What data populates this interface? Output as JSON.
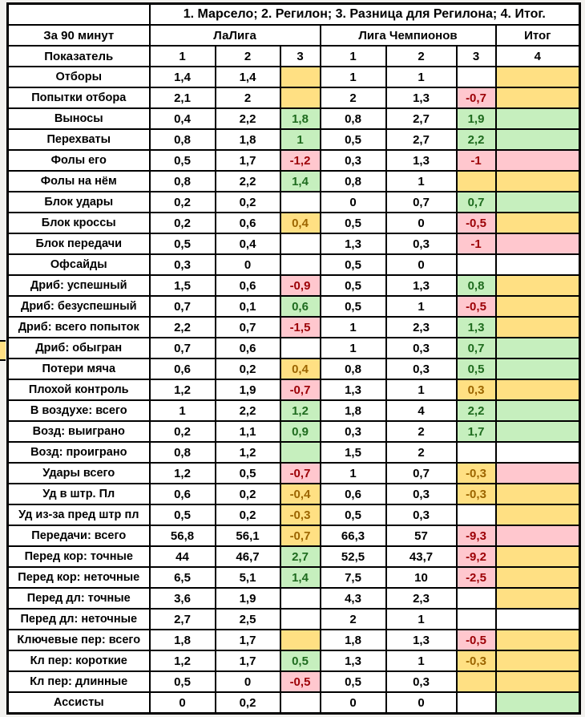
{
  "header": {
    "title": "1. Марсело; 2. Регилон; 3. Разница для Регилона; 4. Итог.",
    "per90": "За 90 минут",
    "laliga": "ЛаЛига",
    "ucl": "Лига Чемпионов",
    "total": "Итог",
    "indicator": "Показатель",
    "col_numbers": [
      "1",
      "2",
      "3",
      "1",
      "2",
      "3",
      "4"
    ]
  },
  "colors": {
    "w": "#FFFFFF",
    "y": "#FFE083",
    "g": "#C6EFBE",
    "p": "#FFC7CE"
  },
  "text_colors": {
    "w": "#000000",
    "y": "#9C6500",
    "g": "#1E6B1E",
    "p": "#9C0006"
  },
  "rows": [
    {
      "label": "Отборы",
      "cells": [
        {
          "v": "1,4",
          "c": "w"
        },
        {
          "v": "1,4",
          "c": "w"
        },
        {
          "v": "",
          "c": "y"
        },
        {
          "v": "1",
          "c": "w"
        },
        {
          "v": "1",
          "c": "w"
        },
        {
          "v": "",
          "c": "w"
        }
      ],
      "total": "y"
    },
    {
      "label": "Попытки отбора",
      "cells": [
        {
          "v": "2,1",
          "c": "w"
        },
        {
          "v": "2",
          "c": "w"
        },
        {
          "v": "",
          "c": "y"
        },
        {
          "v": "2",
          "c": "w"
        },
        {
          "v": "1,3",
          "c": "w"
        },
        {
          "v": "-0,7",
          "c": "p"
        }
      ],
      "total": "y"
    },
    {
      "label": "Выносы",
      "cells": [
        {
          "v": "0,4",
          "c": "w"
        },
        {
          "v": "2,2",
          "c": "w"
        },
        {
          "v": "1,8",
          "c": "g"
        },
        {
          "v": "0,8",
          "c": "w"
        },
        {
          "v": "2,7",
          "c": "w"
        },
        {
          "v": "1,9",
          "c": "g"
        }
      ],
      "total": "g"
    },
    {
      "label": "Перехваты",
      "cells": [
        {
          "v": "0,8",
          "c": "w"
        },
        {
          "v": "1,8",
          "c": "w"
        },
        {
          "v": "1",
          "c": "g"
        },
        {
          "v": "0,5",
          "c": "w"
        },
        {
          "v": "2,7",
          "c": "w"
        },
        {
          "v": "2,2",
          "c": "g"
        }
      ],
      "total": "g"
    },
    {
      "label": "Фолы его",
      "cells": [
        {
          "v": "0,5",
          "c": "w"
        },
        {
          "v": "1,7",
          "c": "w"
        },
        {
          "v": "-1,2",
          "c": "p"
        },
        {
          "v": "0,3",
          "c": "w"
        },
        {
          "v": "1,3",
          "c": "w"
        },
        {
          "v": "-1",
          "c": "p"
        }
      ],
      "total": "p"
    },
    {
      "label": "Фолы на нём",
      "cells": [
        {
          "v": "0,8",
          "c": "w"
        },
        {
          "v": "2,2",
          "c": "w"
        },
        {
          "v": "1,4",
          "c": "g"
        },
        {
          "v": "0,8",
          "c": "w"
        },
        {
          "v": "1",
          "c": "w"
        },
        {
          "v": "",
          "c": "y"
        }
      ],
      "total": "y"
    },
    {
      "label": "Блок удары",
      "cells": [
        {
          "v": "0,2",
          "c": "w"
        },
        {
          "v": "0,2",
          "c": "w"
        },
        {
          "v": "",
          "c": "w"
        },
        {
          "v": "0",
          "c": "w"
        },
        {
          "v": "0,7",
          "c": "w"
        },
        {
          "v": "0,7",
          "c": "g"
        }
      ],
      "total": "g"
    },
    {
      "label": "Блок кроссы",
      "cells": [
        {
          "v": "0,2",
          "c": "w"
        },
        {
          "v": "0,6",
          "c": "w"
        },
        {
          "v": "0,4",
          "c": "y"
        },
        {
          "v": "0,5",
          "c": "w"
        },
        {
          "v": "0",
          "c": "w"
        },
        {
          "v": "-0,5",
          "c": "p"
        }
      ],
      "total": "y"
    },
    {
      "label": "Блок передачи",
      "cells": [
        {
          "v": "0,5",
          "c": "w"
        },
        {
          "v": "0,4",
          "c": "w"
        },
        {
          "v": "",
          "c": "w"
        },
        {
          "v": "1,3",
          "c": "w"
        },
        {
          "v": "0,3",
          "c": "w"
        },
        {
          "v": "-1",
          "c": "p"
        }
      ],
      "total": "p"
    },
    {
      "label": "Офсайды",
      "cells": [
        {
          "v": "0,3",
          "c": "w"
        },
        {
          "v": "0",
          "c": "w"
        },
        {
          "v": "",
          "c": "w"
        },
        {
          "v": "0,5",
          "c": "w"
        },
        {
          "v": "0",
          "c": "w"
        },
        {
          "v": "",
          "c": "w"
        }
      ],
      "total": "w"
    },
    {
      "label": "Дриб: успешный",
      "cells": [
        {
          "v": "1,5",
          "c": "w"
        },
        {
          "v": "0,6",
          "c": "w"
        },
        {
          "v": "-0,9",
          "c": "p"
        },
        {
          "v": "0,5",
          "c": "w"
        },
        {
          "v": "1,3",
          "c": "w"
        },
        {
          "v": "0,8",
          "c": "g"
        }
      ],
      "total": "y"
    },
    {
      "label": "Дриб: безуспешный",
      "cells": [
        {
          "v": "0,7",
          "c": "w"
        },
        {
          "v": "0,1",
          "c": "w"
        },
        {
          "v": "0,6",
          "c": "g"
        },
        {
          "v": "0,5",
          "c": "w"
        },
        {
          "v": "1",
          "c": "w"
        },
        {
          "v": "-0,5",
          "c": "p"
        }
      ],
      "total": "y"
    },
    {
      "label": "Дриб: всего попыток",
      "cells": [
        {
          "v": "2,2",
          "c": "w"
        },
        {
          "v": "0,7",
          "c": "w"
        },
        {
          "v": "-1,5",
          "c": "p"
        },
        {
          "v": "1",
          "c": "w"
        },
        {
          "v": "2,3",
          "c": "w"
        },
        {
          "v": "1,3",
          "c": "g"
        }
      ],
      "total": "y"
    },
    {
      "label": "Дриб: обыгран",
      "cells": [
        {
          "v": "0,7",
          "c": "w"
        },
        {
          "v": "0,6",
          "c": "w"
        },
        {
          "v": "",
          "c": "w"
        },
        {
          "v": "1",
          "c": "w"
        },
        {
          "v": "0,3",
          "c": "w"
        },
        {
          "v": "0,7",
          "c": "g"
        }
      ],
      "total": "g"
    },
    {
      "label": "Потери мяча",
      "cells": [
        {
          "v": "0,6",
          "c": "w"
        },
        {
          "v": "0,2",
          "c": "w"
        },
        {
          "v": "0,4",
          "c": "y"
        },
        {
          "v": "0,8",
          "c": "w"
        },
        {
          "v": "0,3",
          "c": "w"
        },
        {
          "v": "0,5",
          "c": "g"
        }
      ],
      "total": "g"
    },
    {
      "label": "Плохой контроль",
      "cells": [
        {
          "v": "1,2",
          "c": "w"
        },
        {
          "v": "1,9",
          "c": "w"
        },
        {
          "v": "-0,7",
          "c": "p"
        },
        {
          "v": "1,3",
          "c": "w"
        },
        {
          "v": "1",
          "c": "w"
        },
        {
          "v": "0,3",
          "c": "y"
        }
      ],
      "total": "y"
    },
    {
      "label": "В воздухе: всего",
      "cells": [
        {
          "v": "1",
          "c": "w"
        },
        {
          "v": "2,2",
          "c": "w"
        },
        {
          "v": "1,2",
          "c": "g"
        },
        {
          "v": "1,8",
          "c": "w"
        },
        {
          "v": "4",
          "c": "w"
        },
        {
          "v": "2,2",
          "c": "g"
        }
      ],
      "total": "g"
    },
    {
      "label": "Возд: выиграно",
      "cells": [
        {
          "v": "0,2",
          "c": "w"
        },
        {
          "v": "1,1",
          "c": "w"
        },
        {
          "v": "0,9",
          "c": "g"
        },
        {
          "v": "0,3",
          "c": "w"
        },
        {
          "v": "2",
          "c": "w"
        },
        {
          "v": "1,7",
          "c": "g"
        }
      ],
      "total": "g"
    },
    {
      "label": "Возд: проиграно",
      "cells": [
        {
          "v": "0,8",
          "c": "w"
        },
        {
          "v": "1,2",
          "c": "w"
        },
        {
          "v": "",
          "c": "g"
        },
        {
          "v": "1,5",
          "c": "w"
        },
        {
          "v": "2",
          "c": "w"
        },
        {
          "v": "",
          "c": "w"
        }
      ],
      "total": "w"
    },
    {
      "label": "Удары всего",
      "cells": [
        {
          "v": "1,2",
          "c": "w"
        },
        {
          "v": "0,5",
          "c": "w"
        },
        {
          "v": "-0,7",
          "c": "p"
        },
        {
          "v": "1",
          "c": "w"
        },
        {
          "v": "0,7",
          "c": "w"
        },
        {
          "v": "-0,3",
          "c": "y"
        }
      ],
      "total": "p"
    },
    {
      "label": "Уд в штр. Пл",
      "cells": [
        {
          "v": "0,6",
          "c": "w"
        },
        {
          "v": "0,2",
          "c": "w"
        },
        {
          "v": "-0,4",
          "c": "y"
        },
        {
          "v": "0,6",
          "c": "w"
        },
        {
          "v": "0,3",
          "c": "w"
        },
        {
          "v": "-0,3",
          "c": "y"
        }
      ],
      "total": "y"
    },
    {
      "label": "Уд из-за пред штр пл",
      "cells": [
        {
          "v": "0,5",
          "c": "w"
        },
        {
          "v": "0,2",
          "c": "w"
        },
        {
          "v": "-0,3",
          "c": "y"
        },
        {
          "v": "0,5",
          "c": "w"
        },
        {
          "v": "0,3",
          "c": "w"
        },
        {
          "v": "",
          "c": "w"
        }
      ],
      "total": "y"
    },
    {
      "label": "Передачи: всего",
      "cells": [
        {
          "v": "56,8",
          "c": "w"
        },
        {
          "v": "56,1",
          "c": "w"
        },
        {
          "v": "-0,7",
          "c": "y"
        },
        {
          "v": "66,3",
          "c": "w"
        },
        {
          "v": "57",
          "c": "w"
        },
        {
          "v": "-9,3",
          "c": "p"
        }
      ],
      "total": "p"
    },
    {
      "label": "Перед кор: точные",
      "cells": [
        {
          "v": "44",
          "c": "w"
        },
        {
          "v": "46,7",
          "c": "w"
        },
        {
          "v": "2,7",
          "c": "g"
        },
        {
          "v": "52,5",
          "c": "w"
        },
        {
          "v": "43,7",
          "c": "w"
        },
        {
          "v": "-9,2",
          "c": "p"
        }
      ],
      "total": "y"
    },
    {
      "label": "Перед кор: неточные",
      "cells": [
        {
          "v": "6,5",
          "c": "w"
        },
        {
          "v": "5,1",
          "c": "w"
        },
        {
          "v": "1,4",
          "c": "g"
        },
        {
          "v": "7,5",
          "c": "w"
        },
        {
          "v": "10",
          "c": "w"
        },
        {
          "v": "-2,5",
          "c": "p"
        }
      ],
      "total": "y"
    },
    {
      "label": "Перед дл: точные",
      "cells": [
        {
          "v": "3,6",
          "c": "w"
        },
        {
          "v": "1,9",
          "c": "w"
        },
        {
          "v": "",
          "c": "w"
        },
        {
          "v": "4,3",
          "c": "w"
        },
        {
          "v": "2,3",
          "c": "w"
        },
        {
          "v": "",
          "c": "w"
        }
      ],
      "total": "y"
    },
    {
      "label": "Перед дл: неточные",
      "cells": [
        {
          "v": "2,7",
          "c": "w"
        },
        {
          "v": "2,5",
          "c": "w"
        },
        {
          "v": "",
          "c": "w"
        },
        {
          "v": "2",
          "c": "w"
        },
        {
          "v": "1",
          "c": "w"
        },
        {
          "v": "",
          "c": "w"
        }
      ],
      "total": "w"
    },
    {
      "label": "Ключевые пер: всего",
      "cells": [
        {
          "v": "1,8",
          "c": "w"
        },
        {
          "v": "1,7",
          "c": "w"
        },
        {
          "v": "",
          "c": "y"
        },
        {
          "v": "1,8",
          "c": "w"
        },
        {
          "v": "1,3",
          "c": "w"
        },
        {
          "v": "-0,5",
          "c": "p"
        }
      ],
      "total": "y"
    },
    {
      "label": "Кл пер: короткие",
      "cells": [
        {
          "v": "1,2",
          "c": "w"
        },
        {
          "v": "1,7",
          "c": "w"
        },
        {
          "v": "0,5",
          "c": "g"
        },
        {
          "v": "1,3",
          "c": "w"
        },
        {
          "v": "1",
          "c": "w"
        },
        {
          "v": "-0,3",
          "c": "y"
        }
      ],
      "total": "y"
    },
    {
      "label": "Кл пер: длинные",
      "cells": [
        {
          "v": "0,5",
          "c": "w"
        },
        {
          "v": "0",
          "c": "w"
        },
        {
          "v": "-0,5",
          "c": "p"
        },
        {
          "v": "0,5",
          "c": "w"
        },
        {
          "v": "0,3",
          "c": "w"
        },
        {
          "v": "",
          "c": "y"
        }
      ],
      "total": "y"
    },
    {
      "label": "Ассисты",
      "cells": [
        {
          "v": "0",
          "c": "w"
        },
        {
          "v": "0,2",
          "c": "w"
        },
        {
          "v": "",
          "c": "w"
        },
        {
          "v": "0",
          "c": "w"
        },
        {
          "v": "0",
          "c": "w"
        },
        {
          "v": "",
          "c": "w"
        }
      ],
      "total": "g"
    }
  ]
}
